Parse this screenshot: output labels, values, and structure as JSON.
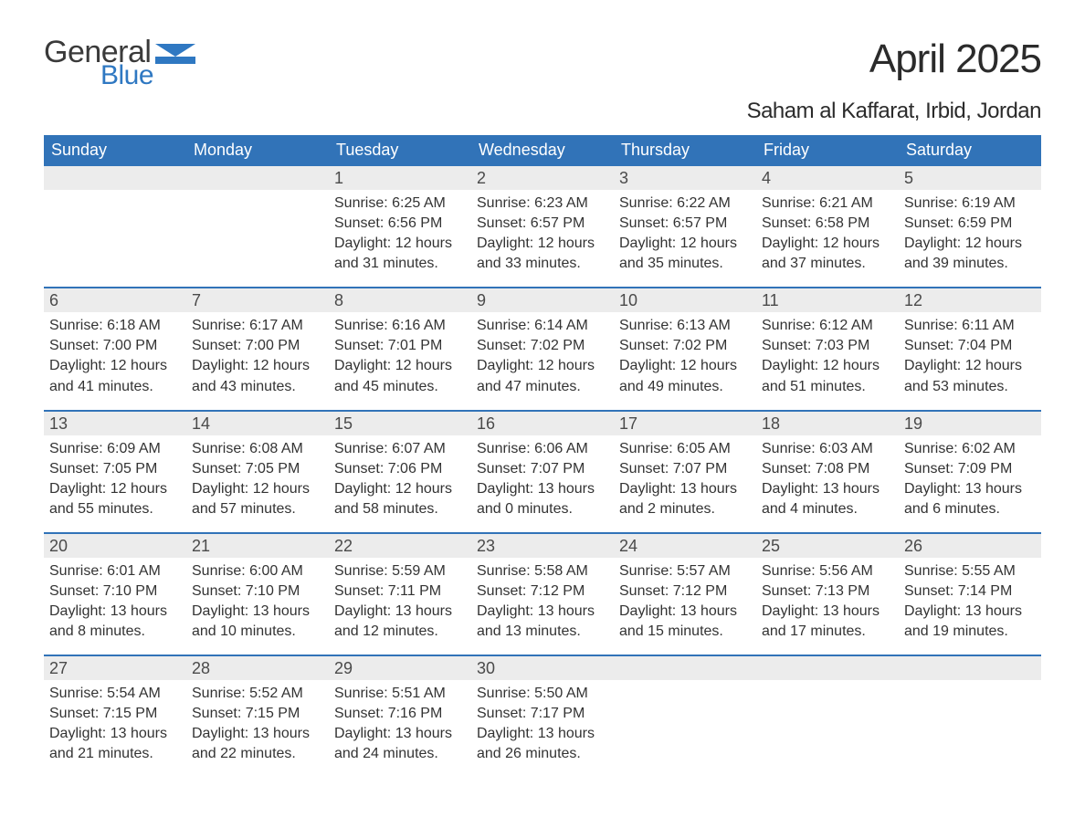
{
  "logo": {
    "text_main": "General",
    "text_sub": "Blue",
    "main_color": "#3a3a3a",
    "sub_color": "#2f78c2",
    "icon_color": "#2f78c2"
  },
  "title": "April 2025",
  "location": "Saham al Kaffarat, Irbid, Jordan",
  "colors": {
    "header_bg": "#3173b8",
    "header_text": "#ffffff",
    "daynum_bg": "#ececec",
    "daynum_text": "#4a4a4a",
    "body_text": "#333333",
    "week_divider": "#3173b8",
    "background": "#ffffff"
  },
  "typography": {
    "title_fontsize": 44,
    "location_fontsize": 24,
    "weekday_fontsize": 18,
    "daynum_fontsize": 18,
    "body_fontsize": 16,
    "font_family": "Arial"
  },
  "weekdays": [
    "Sunday",
    "Monday",
    "Tuesday",
    "Wednesday",
    "Thursday",
    "Friday",
    "Saturday"
  ],
  "weeks": [
    [
      {
        "num": "",
        "sunrise": "",
        "sunset": "",
        "daylight1": "",
        "daylight2": ""
      },
      {
        "num": "",
        "sunrise": "",
        "sunset": "",
        "daylight1": "",
        "daylight2": ""
      },
      {
        "num": "1",
        "sunrise": "Sunrise: 6:25 AM",
        "sunset": "Sunset: 6:56 PM",
        "daylight1": "Daylight: 12 hours",
        "daylight2": "and 31 minutes."
      },
      {
        "num": "2",
        "sunrise": "Sunrise: 6:23 AM",
        "sunset": "Sunset: 6:57 PM",
        "daylight1": "Daylight: 12 hours",
        "daylight2": "and 33 minutes."
      },
      {
        "num": "3",
        "sunrise": "Sunrise: 6:22 AM",
        "sunset": "Sunset: 6:57 PM",
        "daylight1": "Daylight: 12 hours",
        "daylight2": "and 35 minutes."
      },
      {
        "num": "4",
        "sunrise": "Sunrise: 6:21 AM",
        "sunset": "Sunset: 6:58 PM",
        "daylight1": "Daylight: 12 hours",
        "daylight2": "and 37 minutes."
      },
      {
        "num": "5",
        "sunrise": "Sunrise: 6:19 AM",
        "sunset": "Sunset: 6:59 PM",
        "daylight1": "Daylight: 12 hours",
        "daylight2": "and 39 minutes."
      }
    ],
    [
      {
        "num": "6",
        "sunrise": "Sunrise: 6:18 AM",
        "sunset": "Sunset: 7:00 PM",
        "daylight1": "Daylight: 12 hours",
        "daylight2": "and 41 minutes."
      },
      {
        "num": "7",
        "sunrise": "Sunrise: 6:17 AM",
        "sunset": "Sunset: 7:00 PM",
        "daylight1": "Daylight: 12 hours",
        "daylight2": "and 43 minutes."
      },
      {
        "num": "8",
        "sunrise": "Sunrise: 6:16 AM",
        "sunset": "Sunset: 7:01 PM",
        "daylight1": "Daylight: 12 hours",
        "daylight2": "and 45 minutes."
      },
      {
        "num": "9",
        "sunrise": "Sunrise: 6:14 AM",
        "sunset": "Sunset: 7:02 PM",
        "daylight1": "Daylight: 12 hours",
        "daylight2": "and 47 minutes."
      },
      {
        "num": "10",
        "sunrise": "Sunrise: 6:13 AM",
        "sunset": "Sunset: 7:02 PM",
        "daylight1": "Daylight: 12 hours",
        "daylight2": "and 49 minutes."
      },
      {
        "num": "11",
        "sunrise": "Sunrise: 6:12 AM",
        "sunset": "Sunset: 7:03 PM",
        "daylight1": "Daylight: 12 hours",
        "daylight2": "and 51 minutes."
      },
      {
        "num": "12",
        "sunrise": "Sunrise: 6:11 AM",
        "sunset": "Sunset: 7:04 PM",
        "daylight1": "Daylight: 12 hours",
        "daylight2": "and 53 minutes."
      }
    ],
    [
      {
        "num": "13",
        "sunrise": "Sunrise: 6:09 AM",
        "sunset": "Sunset: 7:05 PM",
        "daylight1": "Daylight: 12 hours",
        "daylight2": "and 55 minutes."
      },
      {
        "num": "14",
        "sunrise": "Sunrise: 6:08 AM",
        "sunset": "Sunset: 7:05 PM",
        "daylight1": "Daylight: 12 hours",
        "daylight2": "and 57 minutes."
      },
      {
        "num": "15",
        "sunrise": "Sunrise: 6:07 AM",
        "sunset": "Sunset: 7:06 PM",
        "daylight1": "Daylight: 12 hours",
        "daylight2": "and 58 minutes."
      },
      {
        "num": "16",
        "sunrise": "Sunrise: 6:06 AM",
        "sunset": "Sunset: 7:07 PM",
        "daylight1": "Daylight: 13 hours",
        "daylight2": "and 0 minutes."
      },
      {
        "num": "17",
        "sunrise": "Sunrise: 6:05 AM",
        "sunset": "Sunset: 7:07 PM",
        "daylight1": "Daylight: 13 hours",
        "daylight2": "and 2 minutes."
      },
      {
        "num": "18",
        "sunrise": "Sunrise: 6:03 AM",
        "sunset": "Sunset: 7:08 PM",
        "daylight1": "Daylight: 13 hours",
        "daylight2": "and 4 minutes."
      },
      {
        "num": "19",
        "sunrise": "Sunrise: 6:02 AM",
        "sunset": "Sunset: 7:09 PM",
        "daylight1": "Daylight: 13 hours",
        "daylight2": "and 6 minutes."
      }
    ],
    [
      {
        "num": "20",
        "sunrise": "Sunrise: 6:01 AM",
        "sunset": "Sunset: 7:10 PM",
        "daylight1": "Daylight: 13 hours",
        "daylight2": "and 8 minutes."
      },
      {
        "num": "21",
        "sunrise": "Sunrise: 6:00 AM",
        "sunset": "Sunset: 7:10 PM",
        "daylight1": "Daylight: 13 hours",
        "daylight2": "and 10 minutes."
      },
      {
        "num": "22",
        "sunrise": "Sunrise: 5:59 AM",
        "sunset": "Sunset: 7:11 PM",
        "daylight1": "Daylight: 13 hours",
        "daylight2": "and 12 minutes."
      },
      {
        "num": "23",
        "sunrise": "Sunrise: 5:58 AM",
        "sunset": "Sunset: 7:12 PM",
        "daylight1": "Daylight: 13 hours",
        "daylight2": "and 13 minutes."
      },
      {
        "num": "24",
        "sunrise": "Sunrise: 5:57 AM",
        "sunset": "Sunset: 7:12 PM",
        "daylight1": "Daylight: 13 hours",
        "daylight2": "and 15 minutes."
      },
      {
        "num": "25",
        "sunrise": "Sunrise: 5:56 AM",
        "sunset": "Sunset: 7:13 PM",
        "daylight1": "Daylight: 13 hours",
        "daylight2": "and 17 minutes."
      },
      {
        "num": "26",
        "sunrise": "Sunrise: 5:55 AM",
        "sunset": "Sunset: 7:14 PM",
        "daylight1": "Daylight: 13 hours",
        "daylight2": "and 19 minutes."
      }
    ],
    [
      {
        "num": "27",
        "sunrise": "Sunrise: 5:54 AM",
        "sunset": "Sunset: 7:15 PM",
        "daylight1": "Daylight: 13 hours",
        "daylight2": "and 21 minutes."
      },
      {
        "num": "28",
        "sunrise": "Sunrise: 5:52 AM",
        "sunset": "Sunset: 7:15 PM",
        "daylight1": "Daylight: 13 hours",
        "daylight2": "and 22 minutes."
      },
      {
        "num": "29",
        "sunrise": "Sunrise: 5:51 AM",
        "sunset": "Sunset: 7:16 PM",
        "daylight1": "Daylight: 13 hours",
        "daylight2": "and 24 minutes."
      },
      {
        "num": "30",
        "sunrise": "Sunrise: 5:50 AM",
        "sunset": "Sunset: 7:17 PM",
        "daylight1": "Daylight: 13 hours",
        "daylight2": "and 26 minutes."
      },
      {
        "num": "",
        "sunrise": "",
        "sunset": "",
        "daylight1": "",
        "daylight2": ""
      },
      {
        "num": "",
        "sunrise": "",
        "sunset": "",
        "daylight1": "",
        "daylight2": ""
      },
      {
        "num": "",
        "sunrise": "",
        "sunset": "",
        "daylight1": "",
        "daylight2": ""
      }
    ]
  ]
}
